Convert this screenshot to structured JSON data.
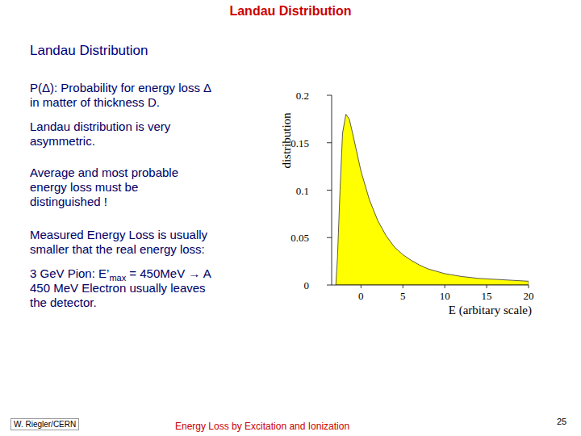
{
  "chart_data": {
    "type": "area",
    "x_label": "E (arbitary scale)",
    "y_label": "distribution",
    "x": [
      -3.0,
      -2.8,
      -2.5,
      -2.2,
      -1.8,
      -1.4,
      -1.0,
      0,
      1,
      2,
      3,
      4,
      5,
      6,
      7,
      8,
      10,
      12,
      14,
      16,
      18,
      20
    ],
    "values": [
      0.0,
      0.03,
      0.1,
      0.16,
      0.18,
      0.175,
      0.16,
      0.12,
      0.09,
      0.068,
      0.052,
      0.04,
      0.032,
      0.026,
      0.021,
      0.017,
      0.012,
      0.009,
      0.007,
      0.006,
      0.005,
      0.004
    ],
    "color": "#ffff00",
    "xlim": [
      -3.5,
      20
    ],
    "xticks": [
      0,
      5,
      10,
      15,
      20
    ],
    "ylim": [
      0,
      0.2
    ],
    "yticks": [
      0,
      0.05,
      0.1,
      0.15,
      0.2
    ],
    "grid": false
  },
  "slide": {
    "title": "Landau Distribution",
    "heading": "Landau Distribution",
    "paragraphs": [
      [
        [
          {
            "text": "P(Δ): Probability for energy loss Δ"
          }
        ],
        [
          {
            "text": "in matter of thickness D."
          }
        ]
      ],
      [
        [
          {
            "text": "Landau distribution is very"
          }
        ],
        [
          {
            "text": "asymmetric."
          }
        ]
      ],
      [
        [
          {
            "text": "Average and most probable"
          }
        ],
        [
          {
            "text": "energy loss must be"
          }
        ],
        [
          {
            "text": "distinguished !"
          }
        ]
      ],
      [
        [
          {
            "text": "Measured Energy Loss is usually"
          }
        ],
        [
          {
            "text": "smaller that the real energy loss:"
          }
        ]
      ],
      [
        [
          {
            "text": "3 GeV Pion: E’"
          },
          {
            "text": "max",
            "sub": true
          },
          {
            "text": " = 450MeV → A"
          }
        ],
        [
          {
            "text": "450 MeV Electron usually leaves"
          }
        ],
        [
          {
            "text": "the detector."
          }
        ]
      ]
    ],
    "footer_left": "W. Riegler/CERN",
    "footer_center": "Energy Loss by Excitation and Ionization",
    "page_number": "25"
  }
}
